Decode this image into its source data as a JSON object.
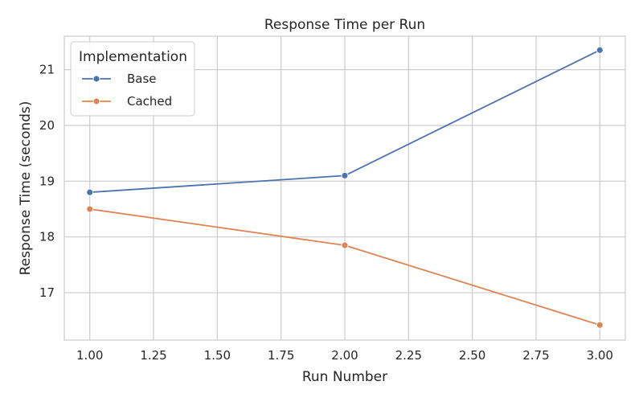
{
  "chart_data": {
    "type": "line",
    "title": "Response Time per Run",
    "xlabel": "Run Number",
    "ylabel": "Response Time (seconds)",
    "xlim": [
      0.9,
      3.1
    ],
    "ylim": [
      16.15,
      21.6
    ],
    "xticks": [
      "1.00",
      "1.25",
      "1.50",
      "1.75",
      "2.00",
      "2.25",
      "2.50",
      "2.75",
      "3.00"
    ],
    "yticks": [
      "17",
      "18",
      "19",
      "20",
      "21"
    ],
    "grid": true,
    "legend": {
      "title": "Implementation",
      "placement": "top-left"
    },
    "x": [
      1,
      2,
      3
    ],
    "series": [
      {
        "name": "Base",
        "values": [
          18.8,
          19.1,
          21.35
        ],
        "color": "#4c72b0"
      },
      {
        "name": "Cached",
        "values": [
          18.5,
          17.85,
          16.42
        ],
        "color": "#dd8452"
      }
    ]
  }
}
